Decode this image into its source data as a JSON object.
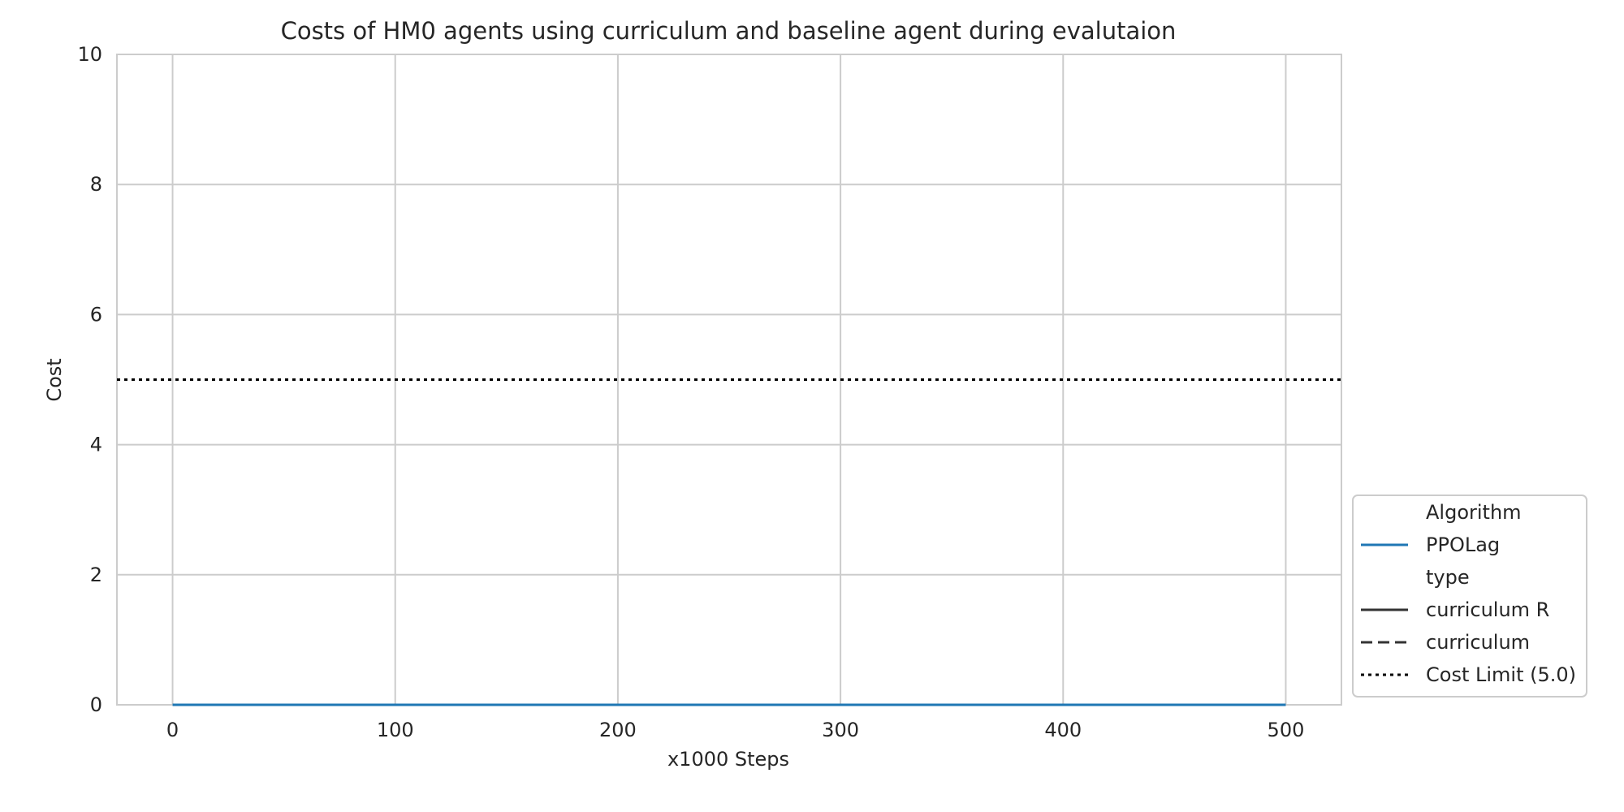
{
  "chart_data": {
    "type": "line",
    "title": "Costs of HM0 agents using curriculum and baseline agent during evalutaion",
    "xlabel": "x1000 Steps",
    "ylabel": "Cost",
    "xlim": [
      -25,
      525
    ],
    "ylim": [
      0,
      10
    ],
    "x_ticks": [
      0,
      100,
      200,
      300,
      400,
      500
    ],
    "y_ticks": [
      0,
      2,
      4,
      6,
      8,
      10
    ],
    "grid": true,
    "legend_position": "lower-right-outside",
    "series": [
      {
        "name": "PPOLag",
        "type_label": "curriculum R",
        "color": "#1f77b4",
        "style": "solid",
        "x": [
          0,
          50,
          100,
          150,
          200,
          250,
          300,
          350,
          400,
          450,
          500
        ],
        "y": [
          0,
          0,
          0,
          0,
          0,
          0,
          0,
          0,
          0,
          0,
          0
        ]
      }
    ],
    "cost_limit": {
      "name": "Cost Limit (5.0)",
      "value": 5.0,
      "color": "#000000",
      "style": "dotted"
    },
    "legend": {
      "groups": [
        {
          "title": "Algorithm",
          "entries": [
            {
              "label": "PPOLag",
              "color": "#1f77b4",
              "style": "solid"
            }
          ]
        },
        {
          "title": "type",
          "entries": [
            {
              "label": "curriculum R",
              "color": "#333333",
              "style": "solid"
            },
            {
              "label": "curriculum",
              "color": "#333333",
              "style": "dashed"
            }
          ]
        }
      ],
      "extra": [
        {
          "label": "Cost Limit (5.0)",
          "color": "#000000",
          "style": "dotted"
        }
      ]
    }
  }
}
